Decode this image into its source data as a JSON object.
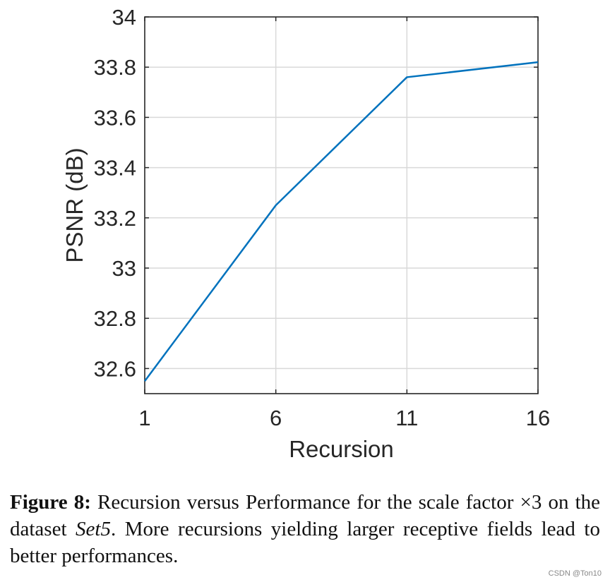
{
  "chart_data": {
    "type": "line",
    "title": "",
    "xlabel": "Recursion",
    "ylabel": "PSNR (dB)",
    "x": [
      1,
      6,
      11,
      16
    ],
    "xticks": [
      1,
      6,
      11,
      16
    ],
    "xlim": [
      1,
      16
    ],
    "yticks": [
      32.6,
      32.8,
      33,
      33.2,
      33.4,
      33.6,
      33.8,
      34
    ],
    "ylim": [
      32.5,
      34
    ],
    "grid": true,
    "series": [
      {
        "values": [
          32.55,
          33.25,
          33.76,
          33.82
        ],
        "color": "#0072BD"
      }
    ]
  },
  "caption": {
    "label": "Figure 8:",
    "text_before": " Recursion versus Performance for the scale factor ×3 on the dataset ",
    "dataset": "Set5",
    "text_after": ".  More recursions yielding larger receptive fields lead to better performances."
  },
  "watermark": "CSDN @Ton10"
}
